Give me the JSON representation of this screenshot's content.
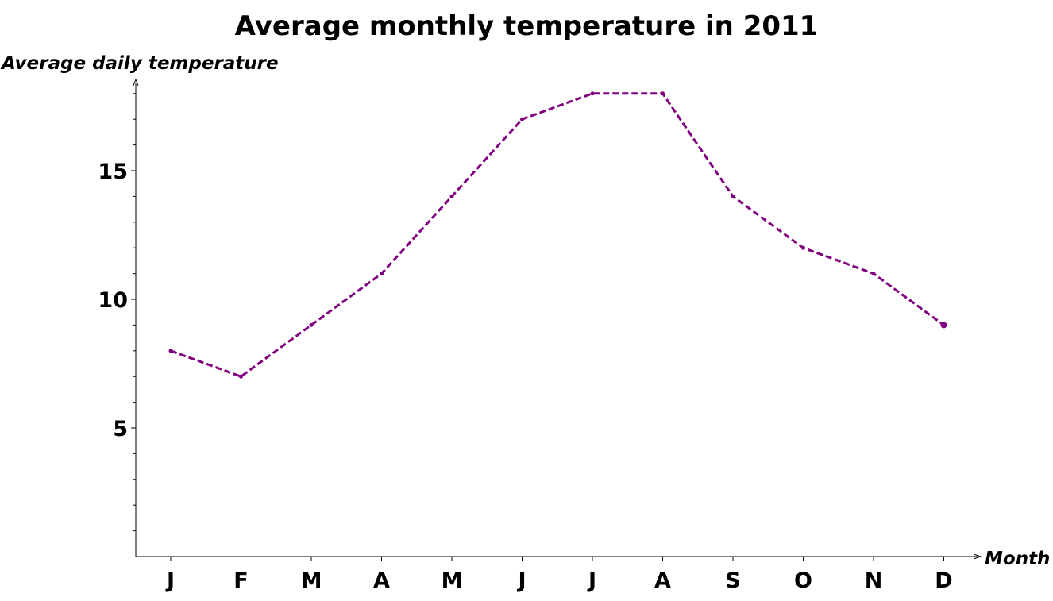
{
  "chart_data": {
    "type": "line",
    "title": "Average monthly temperature in 2011",
    "xlabel": "Month",
    "ylabel": "Average daily temperature",
    "categories": [
      "J",
      "F",
      "M",
      "A",
      "M",
      "J",
      "J",
      "A",
      "S",
      "O",
      "N",
      "D"
    ],
    "series": [
      {
        "values": [
          8,
          7,
          9,
          11,
          14,
          17,
          18,
          18,
          14,
          12,
          11,
          9
        ],
        "color": "#800080",
        "line_style": "dashed"
      }
    ],
    "ylim": [
      0,
      18.5
    ],
    "yticks": [
      5,
      10,
      15
    ],
    "yticks_minor_step": 1,
    "grid": false,
    "legend": "none"
  }
}
